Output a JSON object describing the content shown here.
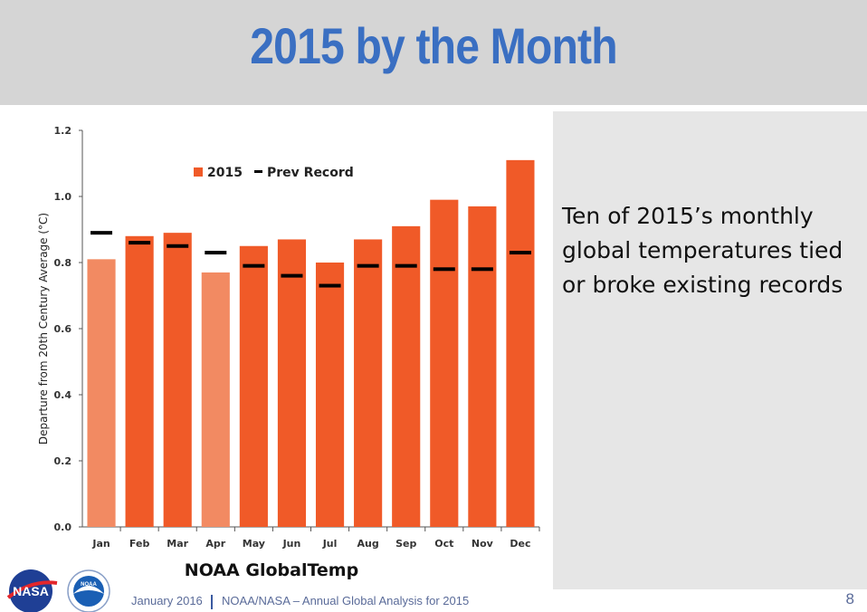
{
  "slide": {
    "title": "2015 by the Month",
    "side_text": "Ten of 2015’s monthly global temperatures tied or broke existing records",
    "footer_date": "January 2016",
    "footer_org": "NOAA/NASA – Annual Global Analysis for 2015",
    "page_number": "8",
    "logos": {
      "nasa": "NASA",
      "noaa": "NOAA"
    }
  },
  "chart_data": {
    "type": "bar",
    "caption": "NOAA GlobalTemp",
    "ylabel": "Departure from 20th Century Average (°C)",
    "xlabel": "",
    "ylim": [
      0.0,
      1.2
    ],
    "yticks": [
      "0.0",
      "0.2",
      "0.4",
      "0.6",
      "0.8",
      "1.0",
      "1.2"
    ],
    "categories": [
      "Jan",
      "Feb",
      "Mar",
      "Apr",
      "May",
      "Jun",
      "Jul",
      "Aug",
      "Sep",
      "Oct",
      "Nov",
      "Dec"
    ],
    "legend_placement": "top-left",
    "series": [
      {
        "name": "2015",
        "color": "#f05a28",
        "light_color": "#f28a62",
        "values": [
          0.81,
          0.88,
          0.89,
          0.77,
          0.85,
          0.87,
          0.8,
          0.87,
          0.91,
          0.99,
          0.97,
          1.11
        ],
        "record": [
          false,
          true,
          true,
          false,
          true,
          true,
          true,
          true,
          true,
          true,
          true,
          true
        ]
      },
      {
        "name": "Prev Record",
        "color": "#000000",
        "values": [
          0.89,
          0.86,
          0.85,
          0.83,
          0.79,
          0.76,
          0.73,
          0.79,
          0.79,
          0.78,
          0.78,
          0.83
        ]
      }
    ],
    "grid": false
  }
}
